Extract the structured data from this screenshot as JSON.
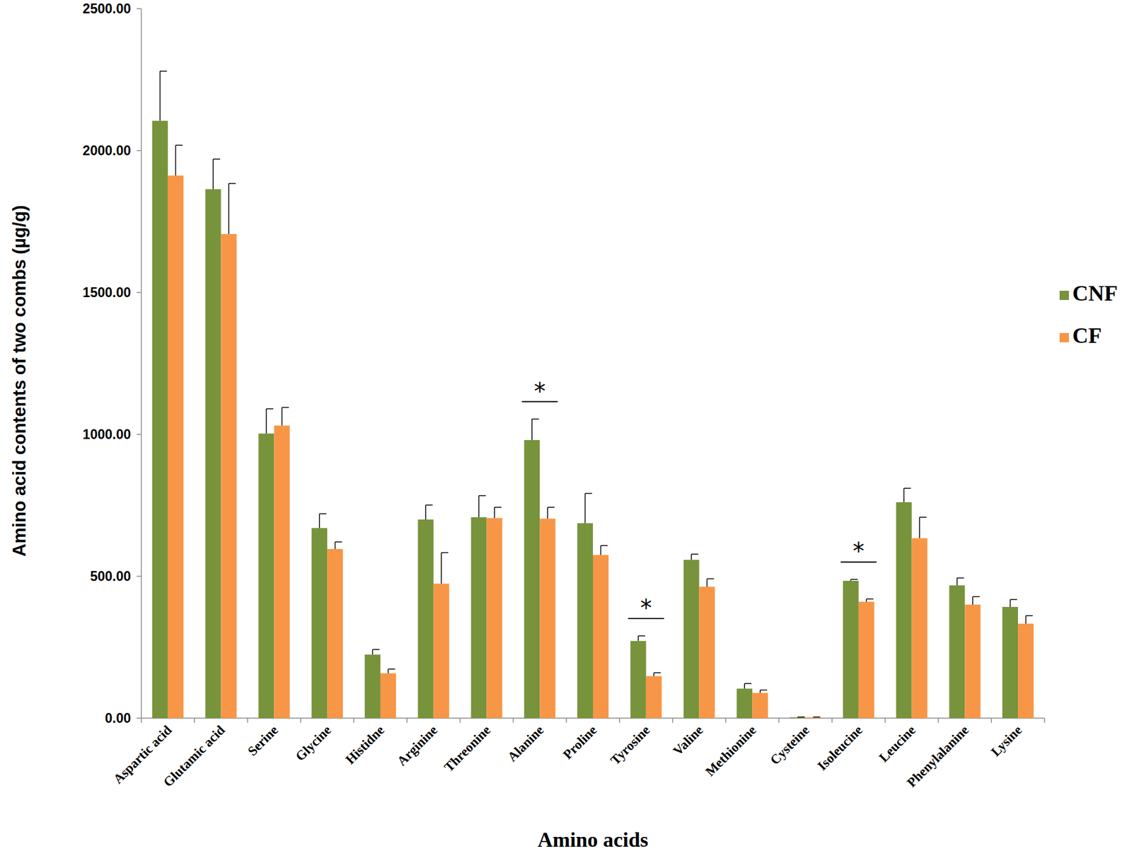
{
  "chart_data": {
    "type": "bar",
    "y_label": "Amino acid contents of two combs (µg/g)",
    "x_label": "Amino acids",
    "categories": [
      "Aspartic acid",
      "Glutamic acid",
      "Serine",
      "Glycine",
      "Histidne",
      "Arginine",
      "Threonine",
      "Alanine",
      "Proline",
      "Tyrosine",
      "Valine",
      "Methionine",
      "Cysteine",
      "Isoleucine",
      "Leucine",
      "Phenylalanine",
      "Lysine"
    ],
    "series": [
      {
        "name": "CNF",
        "color": "#77933c",
        "values": [
          2105,
          1864,
          1003,
          670,
          224,
          700,
          708,
          980,
          687,
          272,
          558,
          104,
          3,
          484,
          761,
          468,
          392
        ],
        "errors": [
          175,
          106,
          87,
          50,
          18,
          51,
          76,
          74,
          105,
          18,
          20,
          18,
          1,
          5,
          49,
          26,
          26
        ]
      },
      {
        "name": "CF",
        "color": "#f79646",
        "values": [
          1912,
          1706,
          1031,
          596,
          158,
          474,
          705,
          703,
          575,
          148,
          463,
          89,
          3,
          410,
          634,
          400,
          333
        ],
        "errors": [
          107,
          178,
          64,
          25,
          15,
          109,
          38,
          40,
          33,
          12,
          28,
          10,
          1,
          10,
          74,
          28,
          28
        ]
      }
    ],
    "annotations": [
      {
        "category": "Alanine",
        "label": "*"
      },
      {
        "category": "Tyrosine",
        "label": "*"
      },
      {
        "category": "Isoleucine",
        "label": "*"
      }
    ],
    "ylim": [
      0,
      2500
    ],
    "yticks": [
      {
        "value": 0,
        "label": "0.00"
      },
      {
        "value": 500,
        "label": "500.00"
      },
      {
        "value": 1000,
        "label": "1000.00"
      },
      {
        "value": 1500,
        "label": "1500.00"
      },
      {
        "value": 2000,
        "label": "2000.00"
      },
      {
        "value": 2500,
        "label": "2500.00"
      }
    ],
    "grid": false,
    "legend": "right"
  }
}
